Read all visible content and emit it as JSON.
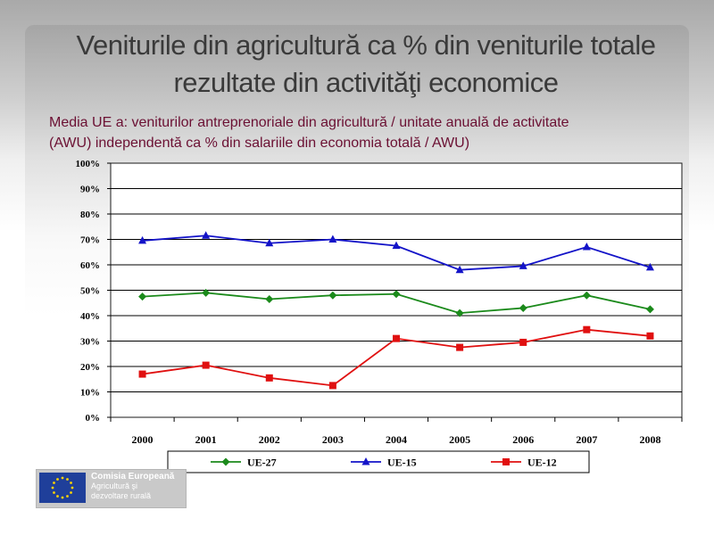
{
  "slide": {
    "title_line1": "Veniturile din agricultură ca % din veniturile totale",
    "title_line2": "rezultate din activităţi economice",
    "subtitle_line1": "Media UE a: veniturilor antreprenoriale din agricultură / unitate anuală de activitate",
    "subtitle_line2": "(AWU) independentă ca % din salariile din economia totală / AWU)"
  },
  "logo": {
    "line1": "Comisia Europeană",
    "line2": "Agricultură şi",
    "line3": "dezvoltare rurală",
    "flag_color": "#1f3f9a",
    "star_color": "#ffd400"
  },
  "chart_data": {
    "type": "line",
    "categories": [
      "2000",
      "2001",
      "2002",
      "2003",
      "2004",
      "2005",
      "2006",
      "2007",
      "2008"
    ],
    "ylim": [
      0,
      100
    ],
    "yticks": [
      "0%",
      "10%",
      "20%",
      "30%",
      "40%",
      "50%",
      "60%",
      "70%",
      "80%",
      "90%",
      "100%"
    ],
    "grid": true,
    "legend_position": "bottom",
    "series": [
      {
        "name": "UE-27",
        "color": "#1b8a1b",
        "marker": "diamond",
        "values": [
          47.5,
          49,
          46.5,
          48,
          48.5,
          41,
          43,
          48,
          42.5
        ]
      },
      {
        "name": "UE-15",
        "color": "#1313c8",
        "marker": "triangle",
        "values": [
          69.5,
          71.5,
          68.5,
          70,
          67.5,
          58,
          59.5,
          67,
          59
        ]
      },
      {
        "name": "UE-12",
        "color": "#e01010",
        "marker": "square",
        "values": [
          17,
          20.5,
          15.5,
          12.5,
          31,
          27.5,
          29.5,
          34.5,
          32
        ]
      }
    ]
  }
}
